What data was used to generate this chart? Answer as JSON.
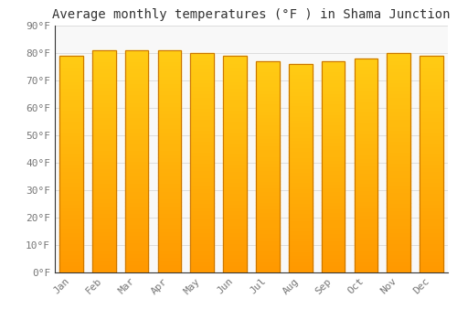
{
  "title": "Average monthly temperatures (°F ) in Shama Junction",
  "months": [
    "Jan",
    "Feb",
    "Mar",
    "Apr",
    "May",
    "Jun",
    "Jul",
    "Aug",
    "Sep",
    "Oct",
    "Nov",
    "Dec"
  ],
  "values": [
    79,
    81,
    81,
    81,
    80,
    79,
    77,
    76,
    77,
    78,
    80,
    79
  ],
  "bar_color_mid": "#FFAA00",
  "bar_color_top": "#FFCC44",
  "bar_color_bottom": "#FF9900",
  "bar_edge_color": "#CC7700",
  "background_color": "#FFFFFF",
  "plot_bg_color": "#F8F8F8",
  "grid_color": "#DDDDDD",
  "title_fontsize": 10,
  "tick_fontsize": 8,
  "ytick_labels": [
    "0°F",
    "10°F",
    "20°F",
    "30°F",
    "40°F",
    "50°F",
    "60°F",
    "70°F",
    "80°F",
    "90°F"
  ],
  "ytick_values": [
    0,
    10,
    20,
    30,
    40,
    50,
    60,
    70,
    80,
    90
  ],
  "ylim": [
    0,
    90
  ],
  "font_family": "monospace"
}
